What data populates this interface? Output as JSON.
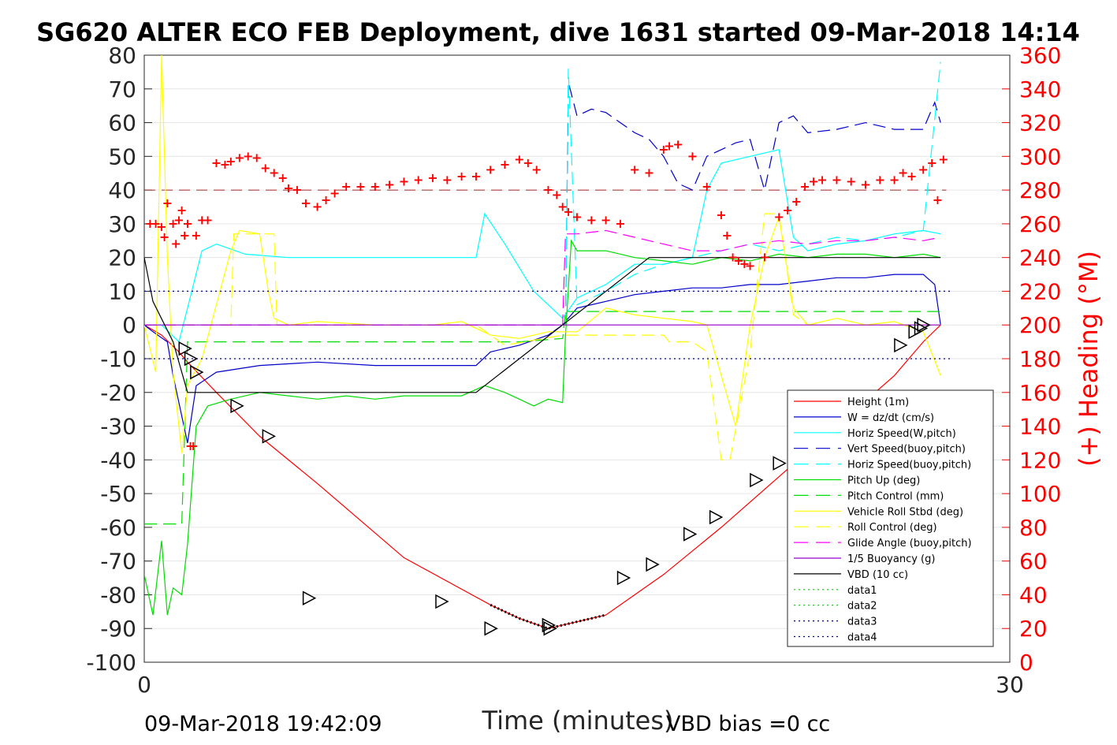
{
  "chart_data": {
    "type": "line",
    "title": "SG620 ALTER ECO FEB Deployment, dive 1631 started 09-Mar-2018 14:14",
    "xlabel": "Time (minutes)",
    "ylabel": "",
    "ylabel_right": "(+) Heading (°M)",
    "xlim": [
      0,
      30
    ],
    "ylim": [
      -100,
      80
    ],
    "ylim_right": [
      0,
      360
    ],
    "x_ticks": [
      "0",
      "30"
    ],
    "y_ticks": [
      "80",
      "70",
      "60",
      "50",
      "40",
      "30",
      "20",
      "10",
      "0",
      "-10",
      "-20",
      "-30",
      "-40",
      "-50",
      "-60",
      "-70",
      "-80",
      "-90",
      "-100"
    ],
    "y_ticks_right": [
      "360",
      "340",
      "320",
      "300",
      "280",
      "260",
      "240",
      "220",
      "200",
      "180",
      "160",
      "140",
      "120",
      "100",
      "80",
      "60",
      "40",
      "20",
      "0"
    ],
    "grid": true,
    "legend_position": "lower-right",
    "footer_left": "09-Mar-2018 19:42:09",
    "footer_right": "VBD bias =0 cc",
    "colors": {
      "height": "#ff0000",
      "w": "#0000cc",
      "horiz": "#00ffff",
      "pitch": "#00dd00",
      "roll": "#ffff00",
      "glide": "#ff00ff",
      "vbd": "#000000",
      "data_blue": "#00008b",
      "data_green": "#00cc00",
      "brown": "#a52a2a"
    },
    "series": [
      {
        "name": "Height (1m)",
        "style": "solid",
        "color": "#ff0000",
        "x": [
          0,
          0.6,
          1.2,
          1.5,
          2.5,
          4.0,
          6.0,
          9.0,
          12.0,
          13.0,
          14.0,
          16.0,
          18.0,
          20.0,
          22.0,
          24.0,
          26.0,
          27.0,
          27.6
        ],
        "y": [
          0,
          -3,
          -8,
          -11,
          -20,
          -33,
          -47,
          -69,
          -83,
          -87,
          -90,
          -86,
          -74,
          -60,
          -45,
          -30,
          -15,
          -5,
          0
        ]
      },
      {
        "name": "W = dz/dt (cm/s)",
        "style": "solid",
        "color": "#0000cc",
        "x": [
          0,
          0.3,
          0.8,
          1.0,
          1.5,
          1.8,
          2.5,
          4,
          6,
          8,
          10,
          11.5,
          12,
          13,
          14,
          14.5,
          15,
          16,
          17,
          18,
          19,
          20,
          21,
          22,
          23,
          24,
          25,
          26,
          27,
          27.4,
          27.6
        ],
        "y": [
          0,
          -2,
          -5,
          -15,
          -35,
          -18,
          -14,
          -12,
          -11,
          -12,
          -12,
          -12,
          -8,
          -6,
          -3,
          0,
          5,
          7,
          9,
          10,
          11,
          11,
          12,
          12,
          13,
          14,
          14,
          15,
          15,
          12,
          0
        ]
      },
      {
        "name": "Horiz Speed(W,pitch)",
        "style": "solid",
        "color": "#00ffff",
        "x": [
          0,
          0.6,
          1.2,
          1.5,
          2.0,
          2.5,
          3.5,
          5,
          7,
          9,
          11,
          11.5,
          11.8,
          12.5,
          13.5,
          14.5,
          15,
          16,
          17,
          18,
          19,
          19.5,
          20,
          21,
          22,
          22.5,
          23,
          24,
          25,
          26,
          27,
          27.6
        ],
        "y": [
          0,
          0,
          -5,
          5,
          22,
          24,
          21,
          20,
          20,
          20,
          20,
          20,
          33,
          24,
          10,
          2,
          8,
          12,
          18,
          18,
          20,
          40,
          48,
          50,
          52,
          26,
          22,
          24,
          25,
          27,
          28,
          27
        ]
      },
      {
        "name": "Vert Speed(buoy,pitch)",
        "style": "dash",
        "color": "#0000cc",
        "x": [
          14.6,
          14.7,
          15,
          15.5,
          16,
          16.5,
          17,
          17.5,
          18,
          18.5,
          19,
          19.5,
          20,
          20.5,
          21,
          21.5,
          22,
          22.5,
          23,
          24,
          25,
          26,
          27,
          27.4,
          27.6
        ],
        "y": [
          0,
          72,
          62,
          64,
          63,
          60,
          57,
          55,
          50,
          42,
          40,
          50,
          52,
          54,
          55,
          40,
          60,
          62,
          57,
          58,
          60,
          58,
          58,
          66,
          60
        ]
      },
      {
        "name": "Horiz Speed(buoy,pitch)",
        "style": "dash",
        "color": "#00ffff",
        "x": [
          14.6,
          14.7,
          15,
          16,
          17,
          18,
          19,
          20,
          21,
          22,
          23,
          24,
          25,
          26,
          27,
          27.6
        ],
        "y": [
          0,
          76,
          6,
          10,
          15,
          18,
          20,
          22,
          24,
          22,
          24,
          26,
          25,
          26,
          28,
          78
        ]
      },
      {
        "name": "Pitch Up (deg)",
        "style": "solid",
        "color": "#00dd00",
        "x": [
          0,
          0.3,
          0.6,
          0.8,
          1.0,
          1.3,
          1.5,
          1.8,
          2.2,
          3,
          4,
          5,
          6,
          7,
          8,
          9,
          10,
          11,
          11.8,
          12.5,
          13,
          13.5,
          14,
          14.5,
          14.6,
          14.8,
          15,
          16,
          17,
          18,
          19,
          20,
          21,
          22,
          23,
          24,
          25,
          26,
          27,
          27.6
        ],
        "y": [
          -74,
          -86,
          -64,
          -86,
          -78,
          -80,
          -65,
          -30,
          -24,
          -22,
          -20,
          -21,
          -22,
          -21,
          -22,
          -21,
          -21,
          -21,
          -18,
          -20,
          -22,
          -24,
          -22,
          -23,
          -3,
          25,
          22,
          22,
          20,
          19,
          18,
          20,
          19,
          21,
          20,
          21,
          21,
          20,
          21,
          20
        ]
      },
      {
        "name": "Pitch Control (mm)",
        "style": "dash",
        "color": "#00dd00",
        "x": [
          0,
          1.2,
          1.3,
          1.5,
          2.5,
          5,
          8,
          11,
          13,
          14.5,
          14.6,
          15,
          18,
          21,
          24,
          27,
          27.6
        ],
        "y": [
          -59,
          -59,
          -59,
          -5,
          -5,
          -5,
          -5,
          -5,
          -5,
          -4,
          4,
          4,
          4,
          4,
          4,
          4,
          4
        ]
      },
      {
        "name": "Vehicle Roll Stbd (deg)",
        "style": "solid",
        "color": "#ffff00",
        "x": [
          0,
          0.4,
          0.6,
          0.8,
          1.0,
          1.3,
          1.5,
          2,
          3,
          3.3,
          4,
          4.3,
          4.5,
          5,
          6,
          8,
          10,
          11,
          12,
          13,
          14,
          15,
          16,
          17,
          18,
          19,
          19.5,
          20,
          20.5,
          21,
          21.5,
          22,
          22.5,
          23,
          24,
          25,
          26,
          27,
          27.6
        ],
        "y": [
          0,
          -14,
          80,
          20,
          -14,
          -38,
          -18,
          -10,
          22,
          28,
          27,
          10,
          2,
          0,
          1,
          0,
          0,
          1,
          -3,
          -4,
          -2,
          -2,
          5,
          3,
          2,
          1,
          0,
          -15,
          -30,
          0,
          20,
          32,
          5,
          0,
          2,
          0,
          1,
          -2,
          -15
        ]
      },
      {
        "name": "Roll Control (deg)",
        "style": "dash",
        "color": "#ffff00",
        "x": [
          0,
          3,
          3.1,
          4.5,
          4.6,
          11.5,
          12.5,
          14.5,
          16,
          18,
          18.2,
          19,
          19.5,
          20,
          20.3,
          21,
          21.5,
          22,
          22.5,
          23,
          25,
          27,
          27.6
        ],
        "y": [
          0,
          0,
          27,
          27,
          0,
          0,
          -6,
          -3,
          -3,
          -3,
          -5,
          -5,
          -8,
          -40,
          -40,
          -8,
          33,
          33,
          3,
          0,
          0,
          0,
          0
        ]
      },
      {
        "name": "Glide Angle (buoy,pitch)",
        "style": "dash",
        "color": "#ff00ff",
        "x": [
          0,
          14.5,
          14.6,
          15,
          16,
          17,
          18,
          19,
          20,
          21,
          22,
          23,
          24,
          25,
          26,
          27,
          27.6
        ],
        "y": [
          0,
          0,
          27,
          27,
          28,
          26,
          24,
          22,
          22,
          24,
          25,
          24,
          25,
          25,
          26,
          25,
          26
        ]
      },
      {
        "name": "1/5 Buoyancy (g)",
        "style": "solid",
        "color": "#9400d3",
        "x": [
          0,
          27.6
        ],
        "y": [
          0,
          0
        ]
      },
      {
        "name": "VBD (10 cc)",
        "style": "solid",
        "color": "#000000",
        "x": [
          0,
          0.3,
          1.0,
          1.5,
          11.5,
          14.5,
          17.5,
          27.6
        ],
        "y": [
          20,
          7,
          -5,
          -20,
          -20,
          0,
          20,
          20
        ]
      },
      {
        "name": "data1",
        "style": "dot",
        "color": "#00cc00",
        "x": [],
        "y": []
      },
      {
        "name": "data2",
        "style": "dot",
        "color": "#00cc00",
        "x": [],
        "y": []
      },
      {
        "name": "data3",
        "style": "dot",
        "color": "#00008b",
        "x": [
          0,
          28
        ],
        "y": [
          10,
          10
        ]
      },
      {
        "name": "data4",
        "style": "dot",
        "color": "#00008b",
        "x": [
          0,
          28
        ],
        "y": [
          -10,
          -10
        ]
      }
    ],
    "brown_dashed_line_y": 40,
    "heading_points": {
      "name": "(+) Heading",
      "x": [
        0.2,
        0.4,
        0.6,
        0.7,
        0.8,
        1.0,
        1.1,
        1.2,
        1.3,
        1.4,
        1.5,
        1.6,
        1.7,
        1.8,
        2.0,
        2.2,
        2.5,
        2.8,
        3.0,
        3.3,
        3.6,
        3.9,
        4.2,
        4.5,
        4.8,
        5.0,
        5.3,
        5.6,
        6.0,
        6.3,
        6.6,
        7.0,
        7.5,
        8.0,
        8.5,
        9.0,
        9.5,
        10.0,
        10.5,
        11.0,
        11.5,
        12.0,
        12.5,
        13.0,
        13.3,
        13.6,
        14.0,
        14.3,
        14.5,
        14.7,
        15.0,
        15.5,
        16.0,
        16.5,
        17.0,
        17.5,
        18.0,
        18.2,
        18.5,
        19.0,
        19.5,
        20.0,
        20.2,
        20.4,
        20.6,
        20.8,
        21.0,
        21.5,
        22.0,
        22.3,
        22.6,
        22.9,
        23.2,
        23.5,
        24.0,
        24.5,
        25.0,
        25.5,
        26.0,
        26.3,
        26.6,
        27.0,
        27.3,
        27.5,
        27.7
      ],
      "y": [
        260,
        260,
        258,
        252,
        272,
        260,
        248,
        262,
        268,
        253,
        260,
        128,
        128,
        253,
        262,
        262,
        296,
        295,
        297,
        299,
        300,
        299,
        293,
        290,
        287,
        281,
        280,
        272,
        270,
        274,
        278,
        282,
        282,
        282,
        283,
        285,
        286,
        287,
        286,
        288,
        288,
        292,
        295,
        298,
        296,
        292,
        280,
        277,
        270,
        267,
        264,
        262,
        262,
        260,
        292,
        290,
        304,
        306,
        307,
        300,
        282,
        265,
        253,
        240,
        238,
        236,
        235,
        240,
        264,
        268,
        273,
        282,
        285,
        286,
        286,
        285,
        283,
        286,
        286,
        290,
        288,
        292,
        296,
        274,
        298
      ]
    },
    "triangle_markers": {
      "x": [
        1.4,
        1.6,
        1.8,
        3.2,
        4.3,
        5.7,
        10.3,
        12.0,
        14.0,
        14.05,
        16.6,
        17.6,
        18.9,
        19.8,
        21.2,
        22.0,
        26.2,
        26.7,
        26.9,
        27.0
      ],
      "y": [
        -7,
        -10,
        -14,
        -24,
        -33,
        -81,
        -82,
        -90,
        -89,
        -90,
        -75,
        -71,
        -62,
        -57,
        -46,
        -41,
        -6,
        -2,
        -1,
        0
      ]
    }
  }
}
